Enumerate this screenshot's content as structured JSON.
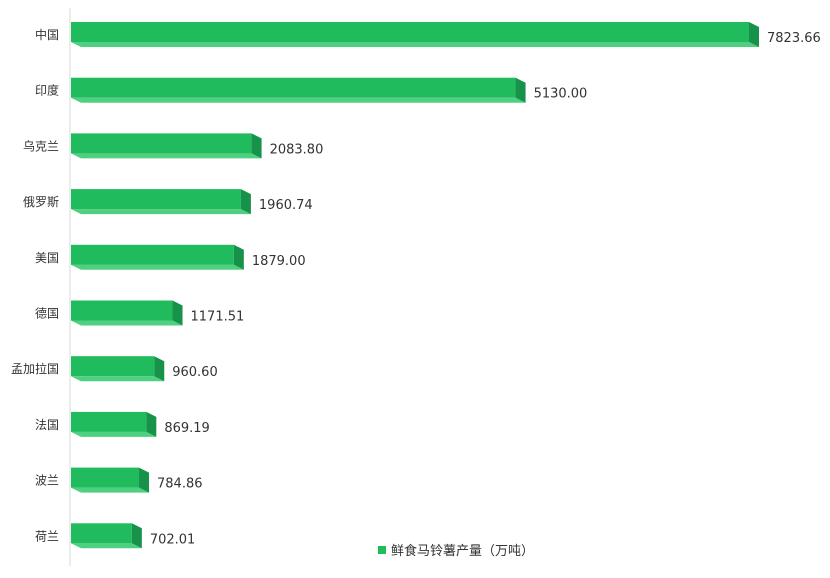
{
  "chart_data": {
    "type": "bar",
    "orientation": "horizontal",
    "categories": [
      "中国",
      "印度",
      "乌克兰",
      "俄罗斯",
      "美国",
      "德国",
      "孟加拉国",
      "法国",
      "波兰",
      "荷兰"
    ],
    "series": [
      {
        "name": "鲜食马铃薯产量（万吨）",
        "values": [
          7823.66,
          5130.0,
          2083.8,
          1960.74,
          1879.0,
          1171.51,
          960.6,
          869.19,
          784.86,
          702.01
        ],
        "value_labels": [
          "7823.66",
          "5130.00",
          "2083.80",
          "1960.74",
          "1879.00",
          "1171.51",
          "960.60",
          "869.19",
          "784.86",
          "702.01"
        ]
      }
    ],
    "xlim": [
      0,
      7823.66
    ],
    "grid": false,
    "legend_position": "bottom-right",
    "colors": {
      "bar_front": "#1fbb5c",
      "bar_bottom": "#4fd080",
      "bar_side": "#17924a",
      "axis": "#d9d9d9"
    }
  },
  "legend": {
    "label": "鲜食马铃薯产量（万吨）"
  }
}
